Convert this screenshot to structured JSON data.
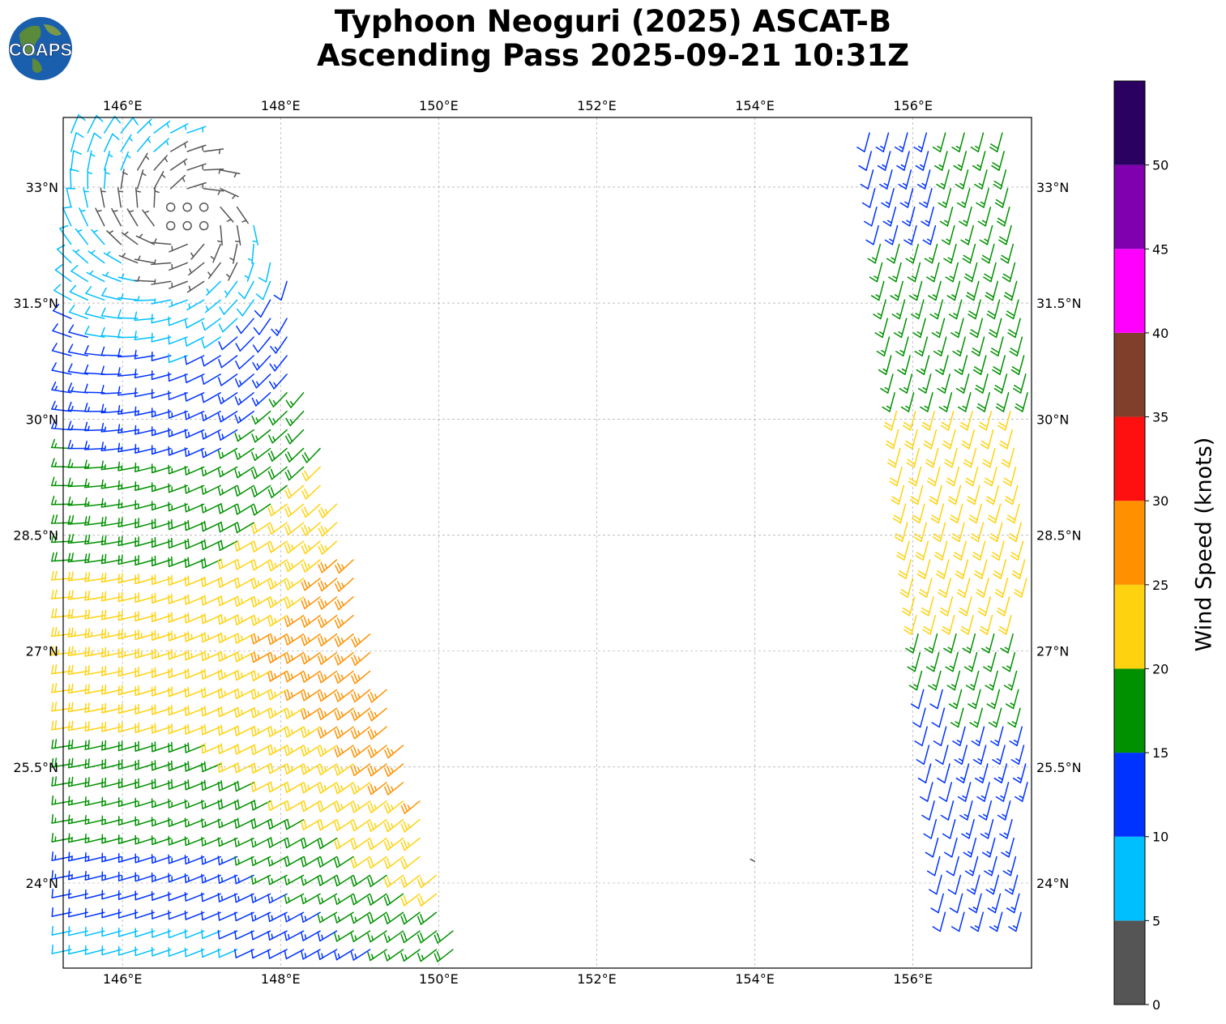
{
  "header": {
    "title_line1": "Typhoon Neoguri (2025) ASCAT-B",
    "title_line2": "Ascending Pass 2025-09-21 10:31Z",
    "logo_text": "COAPS"
  },
  "map": {
    "lon_range": [
      145.25,
      157.5
    ],
    "lat_range": [
      22.9,
      33.9
    ],
    "lon_ticks": [
      146,
      148,
      150,
      152,
      154,
      156
    ],
    "lon_tick_labels": [
      "146°E",
      "148°E",
      "150°E",
      "152°E",
      "154°E",
      "156°E"
    ],
    "lat_ticks": [
      24,
      25.5,
      27,
      28.5,
      30,
      31.5,
      33
    ],
    "lat_tick_labels": [
      "24°N",
      "25.5°N",
      "27°N",
      "28.5°N",
      "30°N",
      "31.5°N",
      "33°N"
    ],
    "gridlines": true,
    "land_feature": {
      "lon": 153.97,
      "lat": 24.3
    }
  },
  "colorbar": {
    "label": "Wind Speed (knots)",
    "tick_values": [
      0,
      5,
      10,
      15,
      20,
      25,
      30,
      35,
      40,
      45,
      50
    ],
    "bins": [
      {
        "min": 0,
        "max": 5,
        "color": "#555555"
      },
      {
        "min": 5,
        "max": 10,
        "color": "#00bfff"
      },
      {
        "min": 10,
        "max": 15,
        "color": "#0033ff"
      },
      {
        "min": 15,
        "max": 20,
        "color": "#009100"
      },
      {
        "min": 20,
        "max": 25,
        "color": "#ffd20f"
      },
      {
        "min": 25,
        "max": 30,
        "color": "#ff9100"
      },
      {
        "min": 30,
        "max": 35,
        "color": "#ff1010"
      },
      {
        "min": 35,
        "max": 40,
        "color": "#7f3f2a"
      },
      {
        "min": 40,
        "max": 45,
        "color": "#ff00ff"
      },
      {
        "min": 45,
        "max": 50,
        "color": "#8000b0"
      },
      {
        "min": 50,
        "max": 55,
        "color": "#2a0060"
      }
    ]
  },
  "chart_data": {
    "type": "wind-barb-map",
    "title": "Typhoon Neoguri (2025) ASCAT-B Ascending Pass 2025-09-21 10:31Z",
    "storm_center_estimate": {
      "lon": 146.8,
      "lat": 32.6
    },
    "swath_west": {
      "description_points": [
        {
          "lon": 145.5,
          "lat": 33.5,
          "speed_kt": 7,
          "dir_deg": 100
        },
        {
          "lon": 146.7,
          "lat": 32.6,
          "speed_kt": 2,
          "dir_deg": 0
        },
        {
          "lon": 145.5,
          "lat": 32.0,
          "speed_kt": 4,
          "dir_deg": 290
        },
        {
          "lon": 146.5,
          "lat": 31.0,
          "speed_kt": 12,
          "dir_deg": 210
        },
        {
          "lon": 147.5,
          "lat": 30.0,
          "speed_kt": 17,
          "dir_deg": 200
        },
        {
          "lon": 148.3,
          "lat": 29.0,
          "speed_kt": 22,
          "dir_deg": 190
        },
        {
          "lon": 148.8,
          "lat": 28.0,
          "speed_kt": 27,
          "dir_deg": 185
        },
        {
          "lon": 148.6,
          "lat": 27.0,
          "speed_kt": 22,
          "dir_deg": 170
        },
        {
          "lon": 148.0,
          "lat": 26.0,
          "speed_kt": 16,
          "dir_deg": 110
        },
        {
          "lon": 147.0,
          "lat": 25.0,
          "speed_kt": 12,
          "dir_deg": 80
        },
        {
          "lon": 147.5,
          "lat": 24.0,
          "speed_kt": 8,
          "dir_deg": 80
        },
        {
          "lon": 146.5,
          "lat": 23.2,
          "speed_kt": 3,
          "dir_deg": 90
        }
      ]
    },
    "swath_east": {
      "description_points": [
        {
          "lon": 155.8,
          "lat": 33.3,
          "speed_kt": 12,
          "dir_deg": 190
        },
        {
          "lon": 156.5,
          "lat": 31.5,
          "speed_kt": 17,
          "dir_deg": 190
        },
        {
          "lon": 156.6,
          "lat": 29.0,
          "speed_kt": 22,
          "dir_deg": 190
        },
        {
          "lon": 157.0,
          "lat": 26.5,
          "speed_kt": 17,
          "dir_deg": 200
        },
        {
          "lon": 157.2,
          "lat": 25.5,
          "speed_kt": 12,
          "dir_deg": 210
        }
      ]
    }
  }
}
